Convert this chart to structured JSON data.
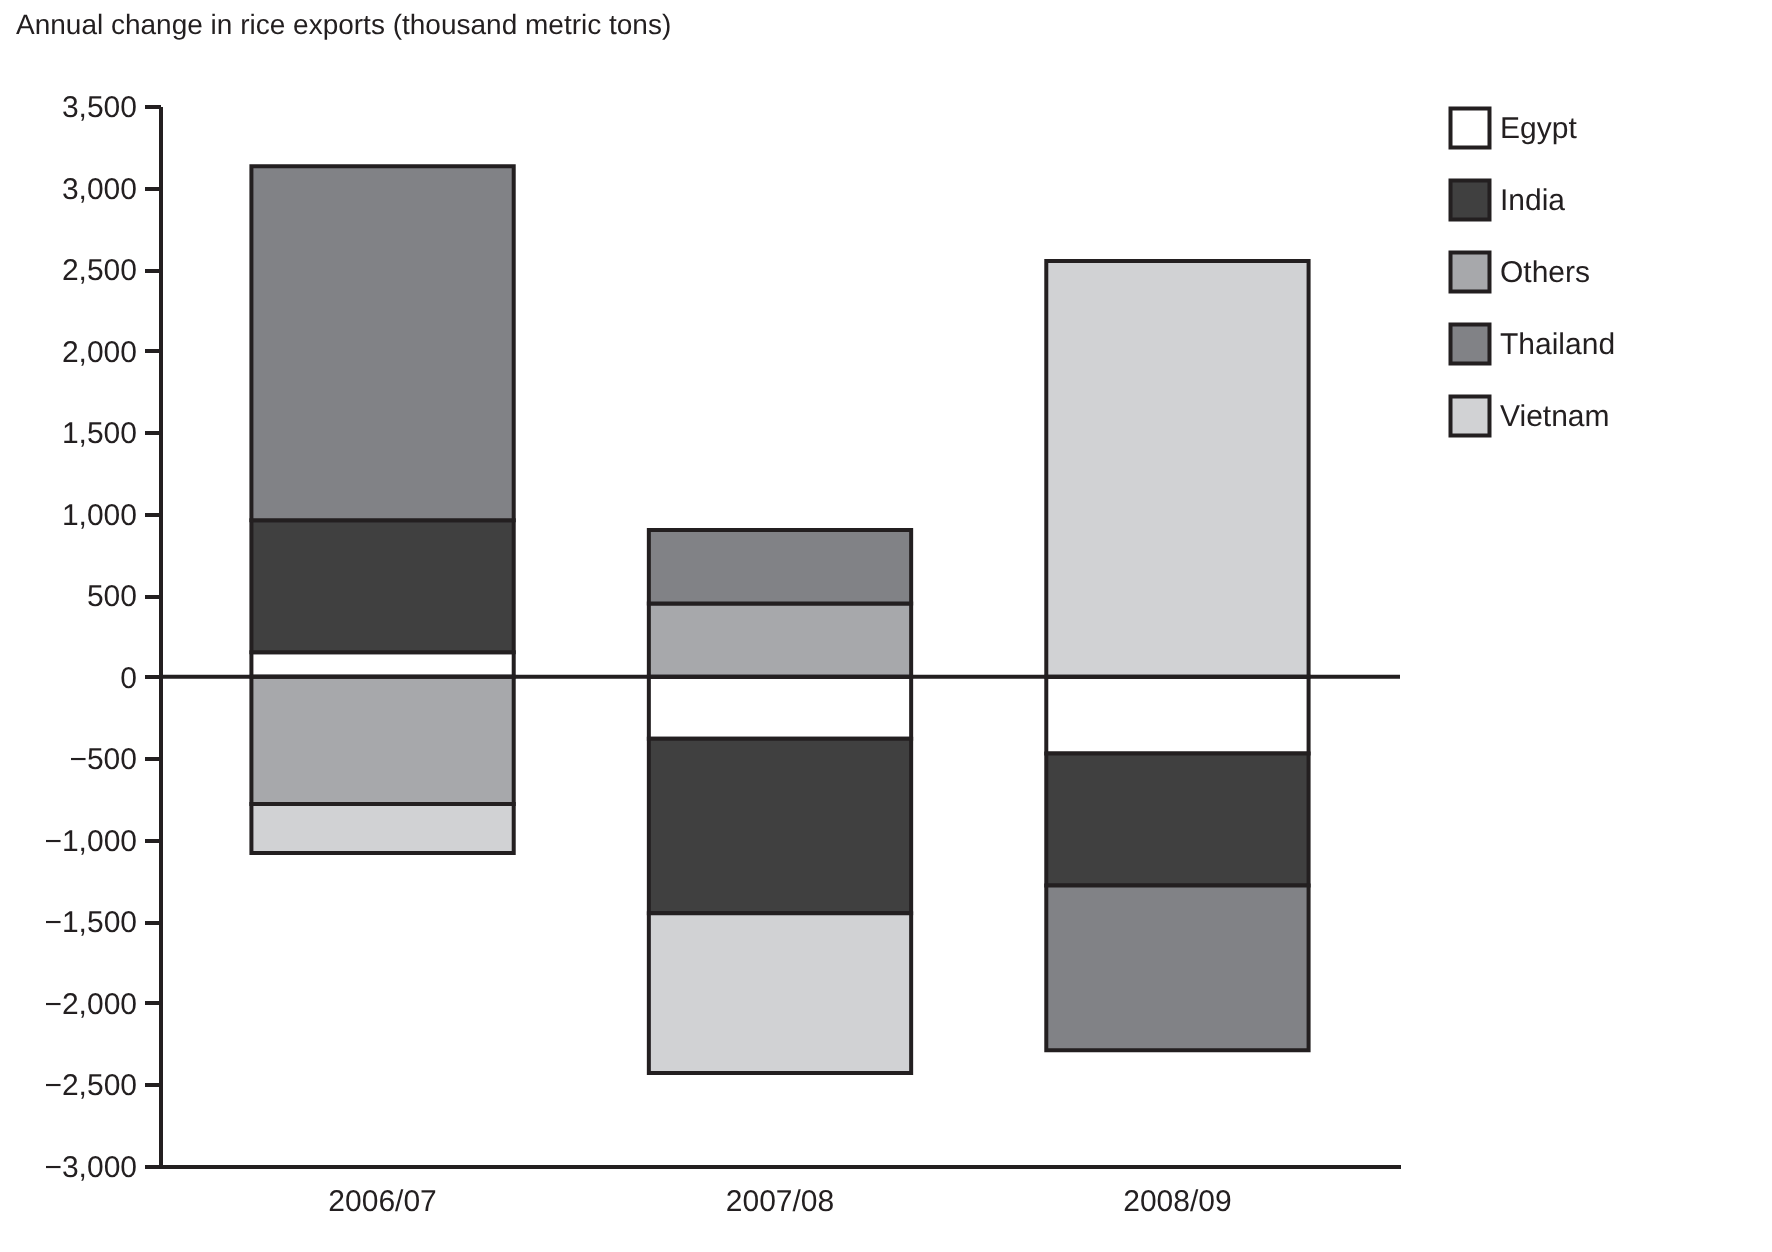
{
  "chart_data": {
    "type": "bar",
    "title": "Annual change in rice exports (thousand metric tons)",
    "stacked": true,
    "categories": [
      "2006/07",
      "2007/08",
      "2008/09"
    ],
    "series": [
      {
        "name": "Egypt",
        "color": "#ffffff",
        "values": [
          150,
          -380,
          -470
        ]
      },
      {
        "name": "India",
        "color": "#404040",
        "values": [
          810,
          -1070,
          -810
        ]
      },
      {
        "name": "Others",
        "color": "#a7a8ab",
        "values": [
          -780,
          450,
          null
        ]
      },
      {
        "name": "Thailand",
        "color": "#818286",
        "values": [
          2170,
          450,
          -1010
        ]
      },
      {
        "name": "Vietnam",
        "color": "#d1d2d4",
        "values": [
          -300,
          -980,
          2550
        ]
      }
    ],
    "ylim": [
      -3000,
      3500
    ],
    "yticks": [
      {
        "value": -3000,
        "label": "−3,000"
      },
      {
        "value": -2500,
        "label": "−2,500"
      },
      {
        "value": -2000,
        "label": "−2,000"
      },
      {
        "value": -1500,
        "label": "−1,500"
      },
      {
        "value": -1000,
        "label": "−1,000"
      },
      {
        "value": -500,
        "label": "−500"
      },
      0,
      500,
      {
        "value": 1000,
        "label": "1,000"
      },
      {
        "value": 1500,
        "label": "1,500"
      },
      {
        "value": 2000,
        "label": "2,000"
      },
      {
        "value": 2500,
        "label": "2,500"
      },
      {
        "value": 3000,
        "label": "3,000"
      },
      {
        "value": 3500,
        "label": "3,500"
      }
    ],
    "ref_lines": [
      {
        "axis": "y",
        "value": 0
      }
    ],
    "legend": "right",
    "grid": false
  }
}
